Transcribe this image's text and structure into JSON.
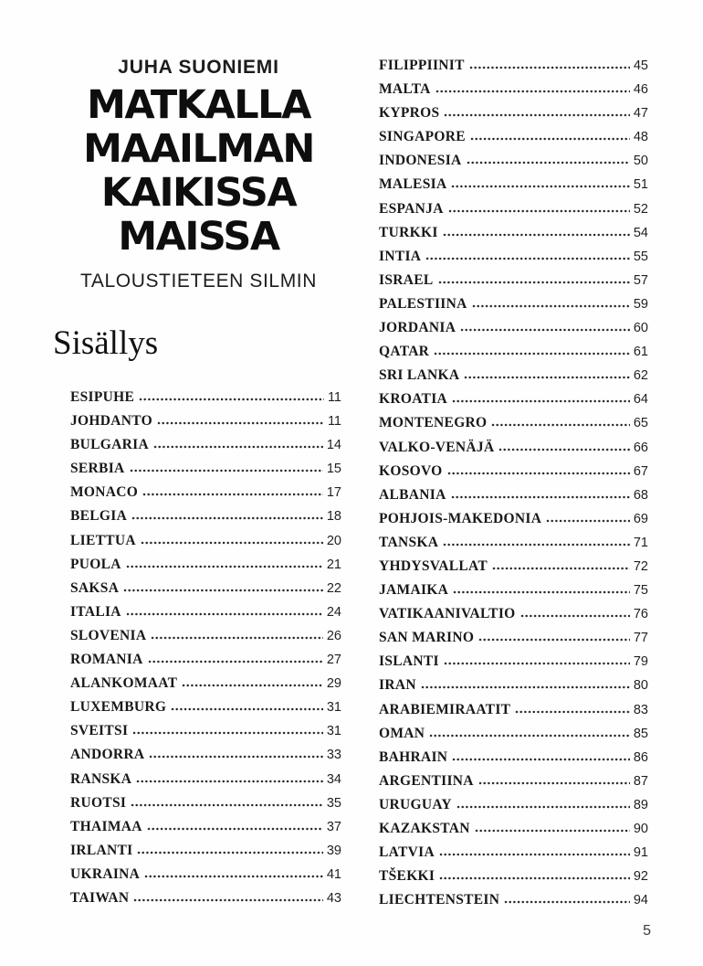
{
  "header": {
    "author": "JUHA SUONIEMI",
    "title_lines": [
      "MATKALLA",
      "MAAILMAN",
      "KAIKISSA",
      "MAISSA"
    ],
    "subtitle": "TALOUSTIETEEN SILMIN"
  },
  "toc": {
    "heading": "Sisällys",
    "left": [
      {
        "label": "ESIPUHE",
        "page": "11"
      },
      {
        "label": "JOHDANTO",
        "page": "11"
      },
      {
        "label": "BULGARIA",
        "page": "14"
      },
      {
        "label": "SERBIA",
        "page": "15"
      },
      {
        "label": "MONACO",
        "page": "17"
      },
      {
        "label": "BELGIA",
        "page": "18"
      },
      {
        "label": "LIETTUA",
        "page": "20"
      },
      {
        "label": "PUOLA",
        "page": "21"
      },
      {
        "label": "SAKSA",
        "page": "22"
      },
      {
        "label": "ITALIA",
        "page": "24"
      },
      {
        "label": "SLOVENIA",
        "page": "26"
      },
      {
        "label": "ROMANIA",
        "page": "27"
      },
      {
        "label": "ALANKOMAAT",
        "page": "29"
      },
      {
        "label": "LUXEMBURG",
        "page": "31"
      },
      {
        "label": "SVEITSI",
        "page": "31"
      },
      {
        "label": "ANDORRA",
        "page": "33"
      },
      {
        "label": "RANSKA",
        "page": "34"
      },
      {
        "label": "RUOTSI",
        "page": "35"
      },
      {
        "label": "THAIMAA",
        "page": "37"
      },
      {
        "label": "IRLANTI",
        "page": "39"
      },
      {
        "label": "UKRAINA",
        "page": "41"
      },
      {
        "label": "TAIWAN",
        "page": "43"
      }
    ],
    "right": [
      {
        "label": "FILIPPIINIT",
        "page": "45"
      },
      {
        "label": "MALTA",
        "page": "46"
      },
      {
        "label": "KYPROS",
        "page": "47"
      },
      {
        "label": "SINGAPORE",
        "page": "48"
      },
      {
        "label": "INDONESIA",
        "page": "50"
      },
      {
        "label": "MALESIA",
        "page": "51"
      },
      {
        "label": "ESPANJA",
        "page": "52"
      },
      {
        "label": "TURKKI",
        "page": "54"
      },
      {
        "label": "INTIA",
        "page": "55"
      },
      {
        "label": "ISRAEL",
        "page": "57"
      },
      {
        "label": "PALESTIINA",
        "page": "59"
      },
      {
        "label": "JORDANIA",
        "page": "60"
      },
      {
        "label": "QATAR",
        "page": "61"
      },
      {
        "label": "SRI LANKA",
        "page": "62"
      },
      {
        "label": "KROATIA",
        "page": "64"
      },
      {
        "label": "MONTENEGRO",
        "page": "65"
      },
      {
        "label": "VALKO-VENÄJÄ",
        "page": "66"
      },
      {
        "label": "KOSOVO",
        "page": "67"
      },
      {
        "label": "ALBANIA",
        "page": "68"
      },
      {
        "label": "POHJOIS-MAKEDONIA",
        "page": "69"
      },
      {
        "label": "TANSKA",
        "page": "71"
      },
      {
        "label": "YHDYSVALLAT",
        "page": "72"
      },
      {
        "label": "JAMAIKA",
        "page": "75"
      },
      {
        "label": "VATIKAANIVALTIO",
        "page": "76"
      },
      {
        "label": "SAN MARINO",
        "page": "77"
      },
      {
        "label": "ISLANTI",
        "page": "79"
      },
      {
        "label": "IRAN",
        "page": "80"
      },
      {
        "label": "ARABIEMIRAATIT",
        "page": "83"
      },
      {
        "label": "OMAN",
        "page": "85"
      },
      {
        "label": "BAHRAIN",
        "page": "86"
      },
      {
        "label": "ARGENTIINA",
        "page": "87"
      },
      {
        "label": "URUGUAY",
        "page": "89"
      },
      {
        "label": "KAZAKSTAN",
        "page": "90"
      },
      {
        "label": "LATVIA",
        "page": "91"
      },
      {
        "label": "TŠEKKI",
        "page": "92"
      },
      {
        "label": "LIECHTENSTEIN",
        "page": "94"
      }
    ]
  },
  "footer": {
    "page_number": "5"
  },
  "colors": {
    "text": "#1a1a1a",
    "title": "#0e0e0e",
    "page_number": "#3a3a3a",
    "background": "#fefefe"
  }
}
